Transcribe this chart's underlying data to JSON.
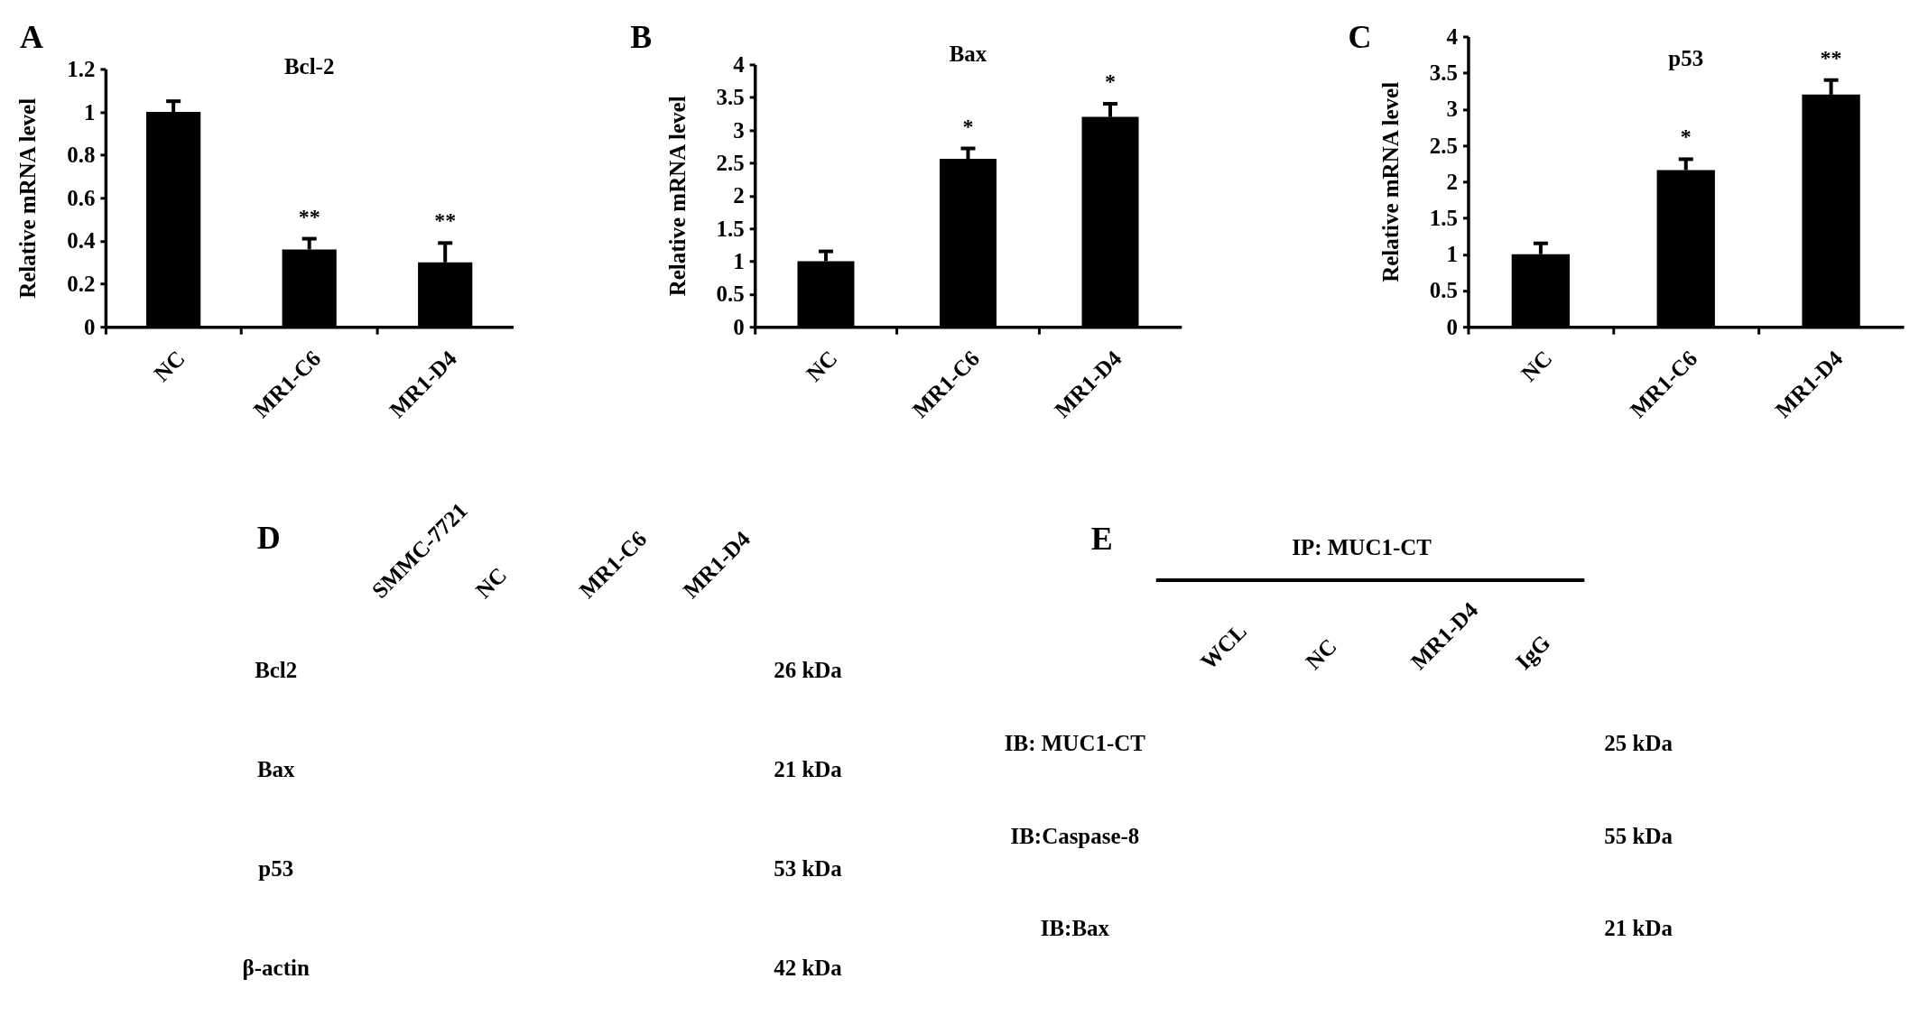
{
  "chart_data": [
    {
      "type": "bar",
      "title": "Bcl-2",
      "ylabel": "Relative mRNA level",
      "categories": [
        "NC",
        "MR1-C6",
        "MR1-D4"
      ],
      "values": [
        1,
        0.36,
        0.3
      ],
      "errors": [
        [
          1,
          1.05
        ],
        [
          0.36,
          0.41
        ],
        [
          0.3,
          0.39
        ]
      ],
      "value_labels": [
        null,
        "**",
        "**"
      ],
      "color": "#000000",
      "ylim": [
        0,
        1.2
      ],
      "yticks": [
        0,
        0.2,
        0.4,
        0.6,
        0.8,
        1,
        1.2
      ],
      "annotations": [
        "A"
      ]
    },
    {
      "type": "bar",
      "title": "Bax",
      "ylabel": "Relative mRNA level",
      "categories": [
        "NC",
        "MR1-C6",
        "MR1-D4"
      ],
      "values": [
        1,
        2.56,
        3.2
      ],
      "errors": [
        [
          1,
          1.15
        ],
        [
          2.56,
          2.72
        ],
        [
          3.2,
          3.4
        ]
      ],
      "value_labels": [
        null,
        "*",
        "*"
      ],
      "color": "#000000",
      "ylim": [
        0,
        4
      ],
      "yticks": [
        0,
        0.5,
        1,
        1.5,
        2,
        2.5,
        3,
        3.5,
        4
      ],
      "annotations": [
        "B"
      ]
    },
    {
      "type": "bar",
      "title": "p53",
      "ylabel": "Relative mRNA level",
      "categories": [
        "NC",
        "MR1-C6",
        "MR1-D4"
      ],
      "values": [
        1,
        2.16,
        3.2
      ],
      "errors": [
        [
          1,
          1.15
        ],
        [
          2.16,
          2.31
        ],
        [
          3.2,
          3.4
        ]
      ],
      "value_labels": [
        null,
        "*",
        "**"
      ],
      "color": "#000000",
      "ylim": [
        0,
        4
      ],
      "yticks": [
        0,
        0.5,
        1,
        1.5,
        2,
        2.5,
        3,
        3.5,
        4
      ],
      "annotations": [
        "C"
      ]
    },
    {
      "type": "other",
      "annotations": [
        "D"
      ],
      "categories": [
        "SMMC-7721",
        "NC",
        "MR1-C6",
        "MR1-D4"
      ],
      "y_categories": [
        "Bcl2",
        "Bax",
        "p53",
        "β-actin"
      ],
      "y2_categories": [
        "26 kDa",
        "21 kDa",
        "53 kDa",
        "42 kDa"
      ]
    },
    {
      "type": "other",
      "title": "IP: MUC1-CT",
      "annotations": [
        "E"
      ],
      "categories": [
        "WCL",
        "NC",
        "MR1-D4",
        "IgG"
      ],
      "y_categories": [
        "IB: MUC1-CT",
        "IB:Caspase-8",
        "IB:Bax"
      ],
      "y2_categories": [
        "25 kDa",
        "55 kDa",
        "21 kDa"
      ]
    }
  ]
}
